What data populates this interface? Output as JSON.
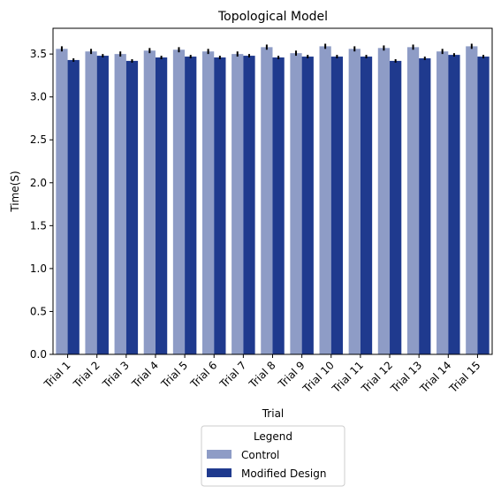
{
  "chart_data": {
    "type": "bar",
    "title": "Topological Model",
    "xlabel": "Trial",
    "ylabel": "Time(S)",
    "ylim": [
      0,
      3.8
    ],
    "yticks": [
      "0.0",
      "0.5",
      "1.0",
      "1.5",
      "2.0",
      "2.5",
      "3.0",
      "3.5"
    ],
    "grid": false,
    "legend_position": "bottom-center",
    "categories": [
      "Trial 1",
      "Trial 2",
      "Trial 3",
      "Trial 4",
      "Trial 5",
      "Trial 6",
      "Trial 7",
      "Trial 8",
      "Trial 9",
      "Trial 10",
      "Trial 11",
      "Trial 12",
      "Trial 13",
      "Trial 14",
      "Trial 15"
    ],
    "legend": {
      "title": "Legend"
    },
    "series": [
      {
        "name": "Control",
        "color": "#8e9cc6",
        "values": [
          3.56,
          3.53,
          3.5,
          3.54,
          3.55,
          3.53,
          3.5,
          3.58,
          3.51,
          3.59,
          3.56,
          3.57,
          3.58,
          3.53,
          3.59
        ],
        "errors": [
          0.03,
          0.03,
          0.03,
          0.03,
          0.03,
          0.03,
          0.03,
          0.03,
          0.03,
          0.03,
          0.03,
          0.03,
          0.03,
          0.03,
          0.03
        ]
      },
      {
        "name": "Modified Design",
        "color": "#1f3a8e",
        "values": [
          3.43,
          3.48,
          3.42,
          3.46,
          3.47,
          3.46,
          3.48,
          3.46,
          3.47,
          3.47,
          3.47,
          3.42,
          3.45,
          3.49,
          3.47
        ],
        "errors": [
          0.02,
          0.02,
          0.02,
          0.02,
          0.02,
          0.02,
          0.02,
          0.02,
          0.02,
          0.02,
          0.02,
          0.02,
          0.02,
          0.02,
          0.02
        ]
      }
    ]
  }
}
